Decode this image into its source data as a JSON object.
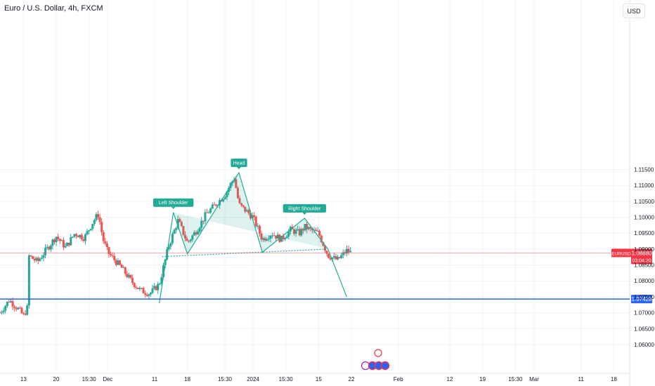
{
  "header": {
    "title": "Euro / U.S. Dollar, 4h, FXCM",
    "currency": "USD"
  },
  "colors": {
    "up": "#26a69a",
    "down": "#ef5350",
    "pattern": "#22ab94",
    "support": "#2962ff",
    "current": "#f23645"
  },
  "chart_data": {
    "type": "candlestick",
    "ylim": [
      1.058,
      1.159
    ],
    "y_ticks": [
      "1.11500",
      "1.11000",
      "1.10500",
      "1.10000",
      "1.09500",
      "1.09000",
      "1.08500",
      "1.08000",
      "1.07500",
      "1.07000",
      "1.06500",
      "1.06000"
    ],
    "x_ticks": [
      "13",
      "20",
      "15:30",
      "Dec",
      "11",
      "18",
      "15:30",
      "2024",
      "15:30",
      "15",
      "22",
      "Feb",
      "12",
      "19",
      "15:30",
      "Mar",
      "11",
      "18"
    ],
    "x_range": [
      "2023-11-08",
      "2024-03-22"
    ],
    "x_tick_dates": [
      "2023-11-13",
      "2023-11-20",
      "2023-11-27",
      "2023-12-01",
      "2023-12-11",
      "2023-12-18",
      "2023-12-26",
      "2024-01-01",
      "2024-01-08",
      "2024-01-15",
      "2024-01-22",
      "2024-02-01",
      "2024-02-12",
      "2024-02-19",
      "2024-02-26",
      "2024-03-01",
      "2024-03-11",
      "2024-03-18"
    ],
    "price_path": [
      [
        "2023-11-08",
        1.07
      ],
      [
        "2023-11-10",
        1.074
      ],
      [
        "2023-11-12",
        1.071
      ],
      [
        "2023-11-13",
        1.069
      ],
      [
        "2023-11-14",
        1.072
      ],
      [
        "2023-11-14",
        1.088
      ],
      [
        "2023-11-16",
        1.086
      ],
      [
        "2023-11-18",
        1.09
      ],
      [
        "2023-11-20",
        1.094
      ],
      [
        "2023-11-22",
        1.0905
      ],
      [
        "2023-11-24",
        1.095
      ],
      [
        "2023-11-26",
        1.0935
      ],
      [
        "2023-11-28",
        1.099
      ],
      [
        "2023-11-29",
        1.101
      ],
      [
        "2023-11-30",
        1.093
      ],
      [
        "2023-12-01",
        1.089
      ],
      [
        "2023-12-04",
        1.084
      ],
      [
        "2023-12-06",
        1.08
      ],
      [
        "2023-12-08",
        1.077
      ],
      [
        "2023-12-10",
        1.076
      ],
      [
        "2023-12-12",
        1.079
      ],
      [
        "2023-12-14",
        1.091
      ],
      [
        "2023-12-16",
        1.099
      ],
      [
        "2023-12-18",
        1.092
      ],
      [
        "2023-12-20",
        1.096
      ],
      [
        "2023-12-22",
        1.101
      ],
      [
        "2023-12-24",
        1.104
      ],
      [
        "2023-12-26",
        1.107
      ],
      [
        "2023-12-28",
        1.1125
      ],
      [
        "2023-12-29",
        1.104
      ],
      [
        "2024-01-01",
        1.1
      ],
      [
        "2024-01-03",
        1.093
      ],
      [
        "2024-01-05",
        1.095
      ],
      [
        "2024-01-07",
        1.093
      ],
      [
        "2024-01-09",
        1.096
      ],
      [
        "2024-01-11",
        1.095
      ],
      [
        "2024-01-12",
        1.097
      ],
      [
        "2024-01-14",
        1.0955
      ],
      [
        "2024-01-15",
        1.095
      ],
      [
        "2024-01-17",
        1.088
      ],
      [
        "2024-01-19",
        1.0865
      ],
      [
        "2024-01-21",
        1.0895
      ],
      [
        "2024-01-22",
        1.0888
      ]
    ],
    "candle_date_range": [
      "2023-11-08",
      "2024-01-22"
    ],
    "horizontal_line": {
      "price": 1.07428,
      "label": "1.07428"
    },
    "current_price": {
      "symbol": "EURUSD",
      "price": 1.0888,
      "label": "1.08880",
      "countdown": "03:04:20"
    },
    "pattern": {
      "points": [
        [
          "2023-12-12",
          1.073
        ],
        [
          "2023-12-15",
          1.1015
        ],
        [
          "2023-12-18",
          1.0885
        ],
        [
          "2023-12-29",
          1.114
        ],
        [
          "2024-01-03",
          1.089
        ],
        [
          "2024-01-12",
          1.0997
        ],
        [
          "2024-01-17",
          1.09
        ],
        [
          "2024-01-21",
          1.075
        ]
      ],
      "neckline": [
        [
          "2023-12-15",
          1.0878
        ],
        [
          "2024-01-17",
          1.09
        ]
      ],
      "labels": [
        {
          "text": "Left Shoulder",
          "date": "2023-12-15",
          "price": 1.1015
        },
        {
          "text": "Head",
          "date": "2023-12-29",
          "price": 1.114
        },
        {
          "text": "Right Shoulder",
          "date": "2024-01-12",
          "price": 1.0997
        }
      ]
    }
  }
}
